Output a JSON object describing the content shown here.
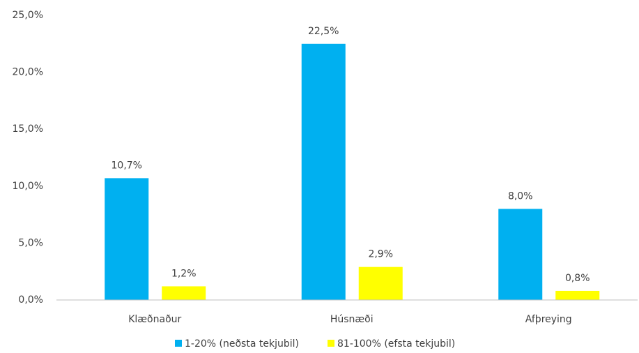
{
  "chart_data": {
    "type": "bar",
    "categories": [
      "Klæðnaður",
      "Húsnæði",
      "Afþreying"
    ],
    "series": [
      {
        "name": "1-20% (neðsta tekjubil)",
        "color": "#00b0f0",
        "values": [
          10.7,
          22.5,
          8.0
        ],
        "value_labels": [
          "10,7%",
          "22,5%",
          "8,0%"
        ]
      },
      {
        "name": "81-100% (efsta tekjubil)",
        "color": "#ffff00",
        "values": [
          1.2,
          2.9,
          0.8
        ],
        "value_labels": [
          "1,2%",
          "2,9%",
          "0,8%"
        ]
      }
    ],
    "ylim": [
      0,
      25
    ],
    "yticks": [
      {
        "value": 0,
        "label": "0,0%"
      },
      {
        "value": 5,
        "label": "5,0%"
      },
      {
        "value": 10,
        "label": "10,0%"
      },
      {
        "value": 15,
        "label": "15,0%"
      },
      {
        "value": 20,
        "label": "20,0%"
      },
      {
        "value": 25,
        "label": "25,0%"
      }
    ],
    "grid": false,
    "legend": "bottom"
  }
}
